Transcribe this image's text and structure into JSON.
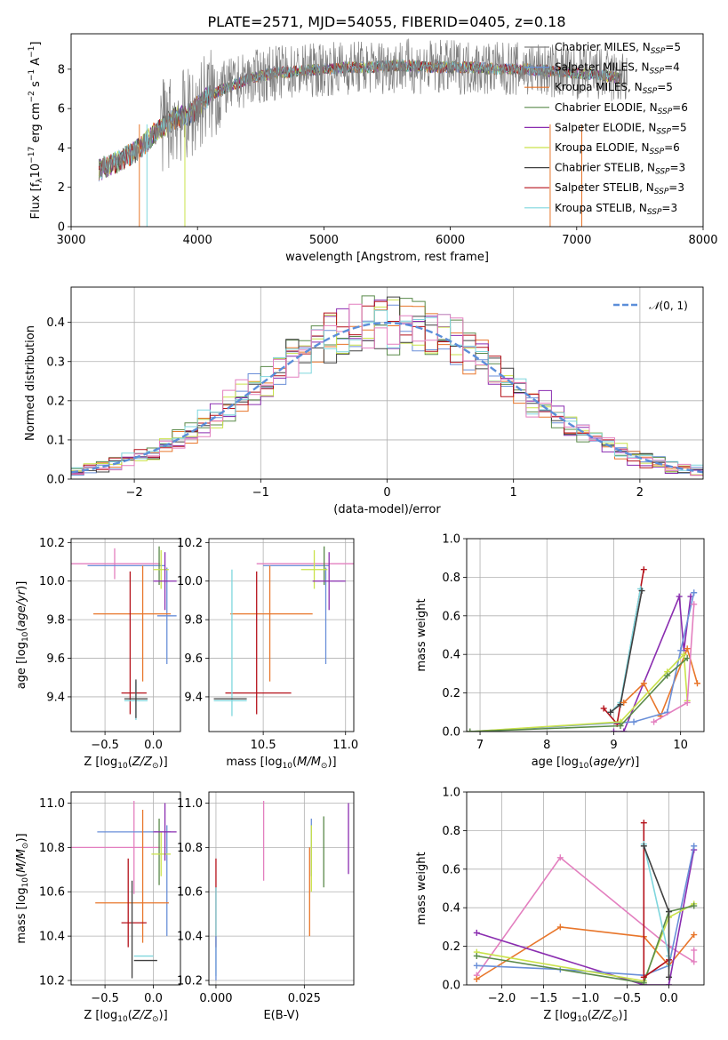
{
  "colors": {
    "blue": "#6a8fd8",
    "orange": "#e8762b",
    "green": "#5a8a4a",
    "purple": "#8a2db0",
    "yellow": "#c9e24a",
    "black": "#404040",
    "red": "#b5121b",
    "cyan": "#7fd6dd",
    "pink": "#e37fbf",
    "grey": "#7f7f7f",
    "gauss": "#5b8ed9"
  },
  "chart_data": [
    {
      "id": "spectrum",
      "type": "line",
      "title": "PLATE=2571, MJD=54055, FIBERID=0405, z=0.18",
      "xlabel": "wavelength [Angstrom, rest frame]",
      "ylabel": "Flux [f_λ 10^-17 erg cm^-2 s^-1 A^-1]",
      "xlim": [
        3000,
        8000
      ],
      "ylim": [
        0,
        9.8
      ],
      "xticks": [
        "3000",
        "4000",
        "5000",
        "6000",
        "7000",
        "8000"
      ],
      "yticks": [
        "0",
        "2",
        "4",
        "6",
        "8"
      ],
      "grid": false,
      "legend_position": "upper-right",
      "legend": [
        {
          "name": "Chabrier MILES, N_SSP=5",
          "color": "#7f7f7f"
        },
        {
          "name": "Salpeter MILES, N_SSP=4",
          "color": "#6a8fd8"
        },
        {
          "name": "Kroupa MILES, N_SSP=5",
          "color": "#e8762b"
        },
        {
          "name": "Chabrier ELODIE, N_SSP=6",
          "color": "#5a8a4a"
        },
        {
          "name": "Salpeter ELODIE, N_SSP=5",
          "color": "#8a2db0"
        },
        {
          "name": "Kroupa ELODIE, N_SSP=6",
          "color": "#c9e24a"
        },
        {
          "name": "Chabrier STELIB, N_SSP=3",
          "color": "#404040"
        },
        {
          "name": "Salpeter STELIB, N_SSP=3",
          "color": "#b5121b"
        },
        {
          "name": "Kroupa STELIB, N_SSP=3",
          "color": "#7fd6dd"
        }
      ],
      "continuum": {
        "x": [
          3220,
          3400,
          3550,
          3700,
          3850,
          3950,
          4050,
          4200,
          4400,
          4600,
          4800,
          5000,
          5200,
          5400,
          5600,
          5800,
          6000,
          6200,
          6400,
          6600,
          6800,
          7000,
          7200,
          7350
        ],
        "y": [
          2.9,
          3.4,
          4.0,
          5.0,
          5.6,
          5.7,
          6.5,
          7.0,
          7.5,
          7.8,
          7.9,
          8.0,
          8.1,
          8.1,
          8.2,
          8.1,
          8.1,
          8.1,
          8.0,
          8.0,
          7.9,
          7.8,
          7.7,
          7.5
        ]
      }
    },
    {
      "id": "residuals",
      "type": "line",
      "xlabel": "(data-model)/error",
      "ylabel": "Normed distribution",
      "xlim": [
        -2.5,
        2.5
      ],
      "ylim": [
        0,
        0.49
      ],
      "xticks": [
        "−2",
        "−1",
        "0",
        "1",
        "2"
      ],
      "yticks": [
        "0.0",
        "0.1",
        "0.2",
        "0.3",
        "0.4"
      ],
      "grid": true,
      "legend_position": "upper-right",
      "legend": [
        {
          "name": "N(0,1)",
          "color": "#5b8ed9",
          "style": "dashed"
        }
      ],
      "bin_width": 0.1
    },
    {
      "id": "age-vs-Z",
      "type": "scatter",
      "xlabel": "Z [log10(Z/Z⊙)]",
      "ylabel": "age [log10(age/yr)]",
      "xlim": [
        -0.85,
        0.28
      ],
      "ylim": [
        9.22,
        10.22
      ],
      "xticks": [
        "−0.5",
        "0.0"
      ],
      "yticks": [
        "9.4",
        "9.6",
        "9.8",
        "10.0",
        "10.2"
      ],
      "grid": true,
      "errorbars": [
        {
          "color": "#e37fbf",
          "x": -0.4,
          "xerr": 0.47,
          "y": 10.09,
          "yerr": 0.08
        },
        {
          "color": "#6a8fd8",
          "x": 0.14,
          "xerr": 0.1,
          "y": 9.82,
          "yerr": 0.25
        },
        {
          "color": "#6a8fd8",
          "x": -0.28,
          "xerr": 0.4,
          "y": 10.08,
          "yerr": 0.0
        },
        {
          "color": "#e8762b",
          "x": -0.22,
          "xerr": 0.4,
          "y": 9.83,
          "yerr": 0.0
        },
        {
          "color": "#e8762b",
          "x": -0.11,
          "xerr": 0.0,
          "y": 9.78,
          "yerr": 0.3
        },
        {
          "color": "#b5121b",
          "x": -0.2,
          "xerr": 0.13,
          "y": 9.42,
          "yerr": 0.0
        },
        {
          "color": "#b5121b",
          "x": -0.24,
          "xerr": 0.0,
          "y": 9.68,
          "yerr": 0.37
        },
        {
          "color": "#7fd6dd",
          "x": -0.18,
          "xerr": 0.12,
          "y": 9.38,
          "yerr": 0.1
        },
        {
          "color": "#404040",
          "x": -0.18,
          "xerr": 0.12,
          "y": 9.39,
          "yerr": 0.1
        },
        {
          "color": "#5a8a4a",
          "x": 0.06,
          "xerr": 0.0,
          "y": 10.08,
          "yerr": 0.1
        },
        {
          "color": "#c9e24a",
          "x": 0.08,
          "xerr": 0.08,
          "y": 10.06,
          "yerr": 0.1
        },
        {
          "color": "#8a2db0",
          "x": 0.12,
          "xerr": 0.12,
          "y": 10.0,
          "yerr": 0.15
        }
      ]
    },
    {
      "id": "age-vs-mass",
      "type": "scatter",
      "xlabel": "mass [log10(M/M⊙)]",
      "xlim": [
        10.17,
        11.05
      ],
      "ylim": [
        9.22,
        10.22
      ],
      "xticks": [
        "10.5",
        "11.0"
      ],
      "yticks": [
        "9.4",
        "9.6",
        "9.8",
        "10.0",
        "10.2"
      ],
      "grid": true,
      "errorbars": [
        {
          "color": "#e37fbf",
          "x": 10.76,
          "xerr": 0.3,
          "y": 10.09,
          "yerr": 0.0
        },
        {
          "color": "#6a8fd8",
          "x": 10.7,
          "xerr": 0.2,
          "y": 10.08,
          "yerr": 0.0
        },
        {
          "color": "#6a8fd8",
          "x": 10.88,
          "xerr": 0.0,
          "y": 9.82,
          "yerr": 0.25
        },
        {
          "color": "#e8762b",
          "x": 10.55,
          "xerr": 0.25,
          "y": 9.83,
          "yerr": 0.0
        },
        {
          "color": "#e8762b",
          "x": 10.54,
          "xerr": 0.0,
          "y": 9.78,
          "yerr": 0.3
        },
        {
          "color": "#b5121b",
          "x": 10.47,
          "xerr": 0.2,
          "y": 9.42,
          "yerr": 0.0
        },
        {
          "color": "#b5121b",
          "x": 10.46,
          "xerr": 0.0,
          "y": 9.68,
          "yerr": 0.37
        },
        {
          "color": "#7fd6dd",
          "x": 10.3,
          "xerr": 0.1,
          "y": 9.38,
          "yerr": 0.0
        },
        {
          "color": "#7fd6dd",
          "x": 10.31,
          "xerr": 0.0,
          "y": 9.68,
          "yerr": 0.38
        },
        {
          "color": "#404040",
          "x": 10.3,
          "xerr": 0.1,
          "y": 9.39,
          "yerr": 0.0
        },
        {
          "color": "#5a8a4a",
          "x": 10.87,
          "xerr": 0.0,
          "y": 10.08,
          "yerr": 0.1
        },
        {
          "color": "#c9e24a",
          "x": 10.81,
          "xerr": 0.08,
          "y": 10.06,
          "yerr": 0.1
        },
        {
          "color": "#8a2db0",
          "x": 10.9,
          "xerr": 0.1,
          "y": 10.0,
          "yerr": 0.15
        }
      ]
    },
    {
      "id": "weight-vs-age",
      "type": "line",
      "xlabel": "age [log10(age/yr)]",
      "ylabel": "mass weight",
      "xlim": [
        6.8,
        10.35
      ],
      "ylim": [
        0,
        1.0
      ],
      "xticks": [
        "7",
        "8",
        "9",
        "10"
      ],
      "yticks": [
        "0.0",
        "0.2",
        "0.4",
        "0.6",
        "0.8",
        "1.0"
      ],
      "grid": true,
      "series": [
        {
          "color": "#b5121b",
          "x": [
            8.85,
            9.05,
            9.45
          ],
          "y": [
            0.12,
            0.04,
            0.84
          ]
        },
        {
          "color": "#7fd6dd",
          "x": [
            8.95,
            9.1,
            9.4
          ],
          "y": [
            0.1,
            0.15,
            0.74
          ]
        },
        {
          "color": "#404040",
          "x": [
            8.95,
            9.1,
            9.42
          ],
          "y": [
            0.1,
            0.14,
            0.73
          ]
        },
        {
          "color": "#8a2db0",
          "x": [
            9.0,
            9.15,
            9.98,
            10.05,
            10.15
          ],
          "y": [
            0.0,
            0.0,
            0.7,
            0.42,
            0.7
          ]
        },
        {
          "color": "#e8762b",
          "x": [
            9.15,
            9.45,
            9.7,
            10.1,
            10.25
          ],
          "y": [
            0.15,
            0.25,
            0.08,
            0.43,
            0.25
          ]
        },
        {
          "color": "#6a8fd8",
          "x": [
            6.85,
            9.3,
            9.8,
            10.0,
            10.2
          ],
          "y": [
            0.0,
            0.05,
            0.1,
            0.42,
            0.72
          ]
        },
        {
          "color": "#c9e24a",
          "x": [
            6.85,
            9.1,
            9.8,
            10.05,
            10.1
          ],
          "y": [
            0.0,
            0.05,
            0.31,
            0.4,
            0.16
          ]
        },
        {
          "color": "#5a8a4a",
          "x": [
            6.85,
            9.1,
            9.8,
            10.1
          ],
          "y": [
            0.0,
            0.03,
            0.29,
            0.38
          ]
        },
        {
          "color": "#e37fbf",
          "x": [
            9.6,
            10.1,
            10.2
          ],
          "y": [
            0.05,
            0.15,
            0.66
          ]
        }
      ]
    },
    {
      "id": "mass-vs-Z",
      "type": "scatter",
      "xlabel": "Z [log10(Z/Z⊙)]",
      "ylabel": "mass [log10(M/M⊙)]",
      "xlim": [
        -0.85,
        0.28
      ],
      "ylim": [
        10.18,
        11.05
      ],
      "xticks": [
        "−0.5",
        "0.0"
      ],
      "yticks": [
        "10.2",
        "10.4",
        "10.6",
        "10.8",
        "11.0"
      ],
      "grid": true,
      "errorbars": [
        {
          "color": "#e37fbf",
          "x": -0.4,
          "xerr": 0.47,
          "y": 10.8,
          "yerr": 0.0
        },
        {
          "color": "#e37fbf",
          "x": -0.2,
          "xerr": 0.0,
          "y": 10.8,
          "yerr": 0.21
        },
        {
          "color": "#6a8fd8",
          "x": -0.2,
          "xerr": 0.38,
          "y": 10.87,
          "yerr": 0.0
        },
        {
          "color": "#6a8fd8",
          "x": 0.14,
          "xerr": 0.0,
          "y": 10.65,
          "yerr": 0.25
        },
        {
          "color": "#e8762b",
          "x": -0.22,
          "xerr": 0.38,
          "y": 10.55,
          "yerr": 0.0
        },
        {
          "color": "#e8762b",
          "x": -0.11,
          "xerr": 0.0,
          "y": 10.67,
          "yerr": 0.3
        },
        {
          "color": "#b5121b",
          "x": -0.2,
          "xerr": 0.13,
          "y": 10.46,
          "yerr": 0.0
        },
        {
          "color": "#b5121b",
          "x": -0.26,
          "xerr": 0.0,
          "y": 10.55,
          "yerr": 0.2
        },
        {
          "color": "#7fd6dd",
          "x": -0.1,
          "xerr": 0.1,
          "y": 10.31,
          "yerr": 0.0
        },
        {
          "color": "#404040",
          "x": -0.08,
          "xerr": 0.12,
          "y": 10.29,
          "yerr": 0.0
        },
        {
          "color": "#404040",
          "x": -0.22,
          "xerr": 0.0,
          "y": 10.43,
          "yerr": 0.22
        },
        {
          "color": "#5a8a4a",
          "x": 0.06,
          "xerr": 0.0,
          "y": 10.78,
          "yerr": 0.15
        },
        {
          "color": "#c9e24a",
          "x": 0.08,
          "xerr": 0.1,
          "y": 10.77,
          "yerr": 0.1
        },
        {
          "color": "#8a2db0",
          "x": 0.12,
          "xerr": 0.12,
          "y": 10.87,
          "yerr": 0.13
        }
      ]
    },
    {
      "id": "mass-vs-EBV",
      "type": "scatter",
      "xlabel": "E(B-V)",
      "xlim": [
        -0.002,
        0.039
      ],
      "ylim": [
        10.18,
        11.05
      ],
      "xticks": [
        "0.000",
        "0.025"
      ],
      "yticks": [
        "10.2",
        "10.4",
        "10.6",
        "10.8",
        "11.0"
      ],
      "grid": true,
      "errorbars": [
        {
          "color": "#b5121b",
          "x": 0.0,
          "xerr": 0.0,
          "y": 10.55,
          "yerr": 0.2
        },
        {
          "color": "#7fd6dd",
          "x": 0.0,
          "xerr": 0.0,
          "y": 10.42,
          "yerr": 0.2
        },
        {
          "color": "#6a8fd8",
          "x": 0.0,
          "xerr": 0.0,
          "y": 10.3,
          "yerr": 0.1
        },
        {
          "color": "#e37fbf",
          "x": 0.0135,
          "xerr": 0.0,
          "y": 10.83,
          "yerr": 0.18
        },
        {
          "color": "#e8762b",
          "x": 0.0265,
          "xerr": 0.0,
          "y": 10.6,
          "yerr": 0.2
        },
        {
          "color": "#6a8fd8",
          "x": 0.027,
          "xerr": 0.0,
          "y": 10.8,
          "yerr": 0.13
        },
        {
          "color": "#c9e24a",
          "x": 0.027,
          "xerr": 0.0,
          "y": 10.75,
          "yerr": 0.15
        },
        {
          "color": "#5a8a4a",
          "x": 0.0305,
          "xerr": 0.0,
          "y": 10.78,
          "yerr": 0.16
        },
        {
          "color": "#8a2db0",
          "x": 0.0375,
          "xerr": 0.0,
          "y": 10.84,
          "yerr": 0.16
        }
      ]
    },
    {
      "id": "weight-vs-Z",
      "type": "line",
      "xlabel": "Z [log10(Z/Z⊙)]",
      "ylabel": "mass weight",
      "xlim": [
        -2.42,
        0.42
      ],
      "ylim": [
        0,
        1.0
      ],
      "xticks": [
        "−2.0",
        "−1.5",
        "−1.0",
        "−0.5",
        "0.0"
      ],
      "yticks": [
        "0.0",
        "0.2",
        "0.4",
        "0.6",
        "0.8",
        "1.0"
      ],
      "grid": true,
      "series": [
        {
          "color": "#e37fbf",
          "x": [
            -2.3,
            -1.3,
            0.0,
            0.3,
            0.3
          ],
          "y": [
            0.05,
            0.66,
            0.2,
            0.12,
            0.18
          ]
        },
        {
          "color": "#e8762b",
          "x": [
            -2.3,
            -1.3,
            -0.3,
            0.0,
            0.3
          ],
          "y": [
            0.03,
            0.3,
            0.25,
            0.1,
            0.26
          ]
        },
        {
          "color": "#8a2db0",
          "x": [
            -2.3,
            -0.3,
            0.0,
            0.3
          ],
          "y": [
            0.27,
            0.0,
            0.0,
            0.7
          ]
        },
        {
          "color": "#6a8fd8",
          "x": [
            -2.3,
            -1.3,
            -0.3,
            0.0,
            0.3
          ],
          "y": [
            0.1,
            0.08,
            0.05,
            0.1,
            0.72
          ]
        },
        {
          "color": "#c9e24a",
          "x": [
            -2.3,
            -0.3,
            0.0,
            0.3
          ],
          "y": [
            0.17,
            0.02,
            0.35,
            0.42
          ]
        },
        {
          "color": "#5a8a4a",
          "x": [
            -2.3,
            -0.3,
            0.0,
            0.3
          ],
          "y": [
            0.15,
            0.01,
            0.38,
            0.41
          ]
        },
        {
          "color": "#b5121b",
          "x": [
            -0.3,
            -0.3,
            0.0
          ],
          "y": [
            0.84,
            0.04,
            0.13
          ]
        },
        {
          "color": "#7fd6dd",
          "x": [
            -0.3,
            0.0,
            0.0
          ],
          "y": [
            0.73,
            0.15,
            0.1
          ]
        },
        {
          "color": "#404040",
          "x": [
            -0.3,
            0.0,
            0.0
          ],
          "y": [
            0.72,
            0.38,
            0.04
          ]
        }
      ]
    }
  ]
}
